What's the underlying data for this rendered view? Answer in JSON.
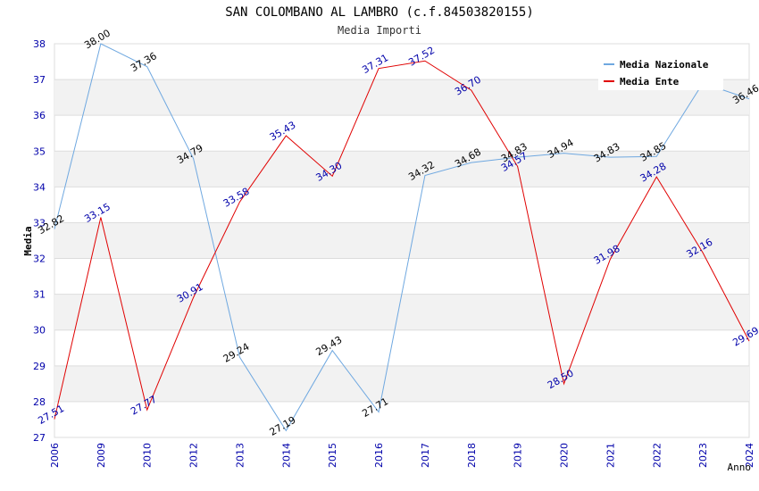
{
  "chart_data": {
    "type": "line",
    "title": "SAN COLOMBANO AL LAMBRO (c.f.84503820155)",
    "subtitle": "Media Importi",
    "xlabel": "Anno",
    "ylabel": "Media",
    "categories": [
      "2006",
      "2009",
      "2010",
      "2012",
      "2013",
      "2014",
      "2015",
      "2016",
      "2017",
      "2018",
      "2019",
      "2020",
      "2021",
      "2022",
      "2023",
      "2024"
    ],
    "ylim": [
      27,
      38
    ],
    "yticks": [
      27,
      28,
      29,
      30,
      31,
      32,
      33,
      34,
      35,
      36,
      37,
      38
    ],
    "grid": "horizontal bands",
    "legend_position": "top-right",
    "series": [
      {
        "name": "Media Nazionale",
        "color": "#6fa8e0",
        "label_color": "#000000",
        "values": [
          32.82,
          38.0,
          37.36,
          34.79,
          29.24,
          27.19,
          29.43,
          27.71,
          34.32,
          34.68,
          34.83,
          34.94,
          34.83,
          34.85,
          36.9,
          36.46
        ],
        "labels": [
          "32.82",
          "38.00",
          "37.36",
          "34.79",
          "29.24",
          "27.19",
          "29.43",
          "27.71",
          "34.32",
          "34.68",
          "34.83",
          "34.94",
          "34.83",
          "34.85",
          "",
          "36.46"
        ]
      },
      {
        "name": "Media Ente",
        "color": "#e00000",
        "label_color": "#0000aa",
        "values": [
          27.51,
          33.15,
          27.77,
          30.91,
          33.58,
          35.43,
          34.3,
          37.31,
          37.52,
          36.7,
          34.57,
          28.5,
          31.98,
          34.28,
          32.16,
          29.69
        ],
        "labels": [
          "27.51",
          "33.15",
          "27.77",
          "30.91",
          "33.58",
          "35.43",
          "34.30",
          "37.31",
          "37.52",
          "36.70",
          "34.57",
          "28.50",
          "31.98",
          "34.28",
          "32.16",
          "29.69"
        ]
      }
    ]
  }
}
